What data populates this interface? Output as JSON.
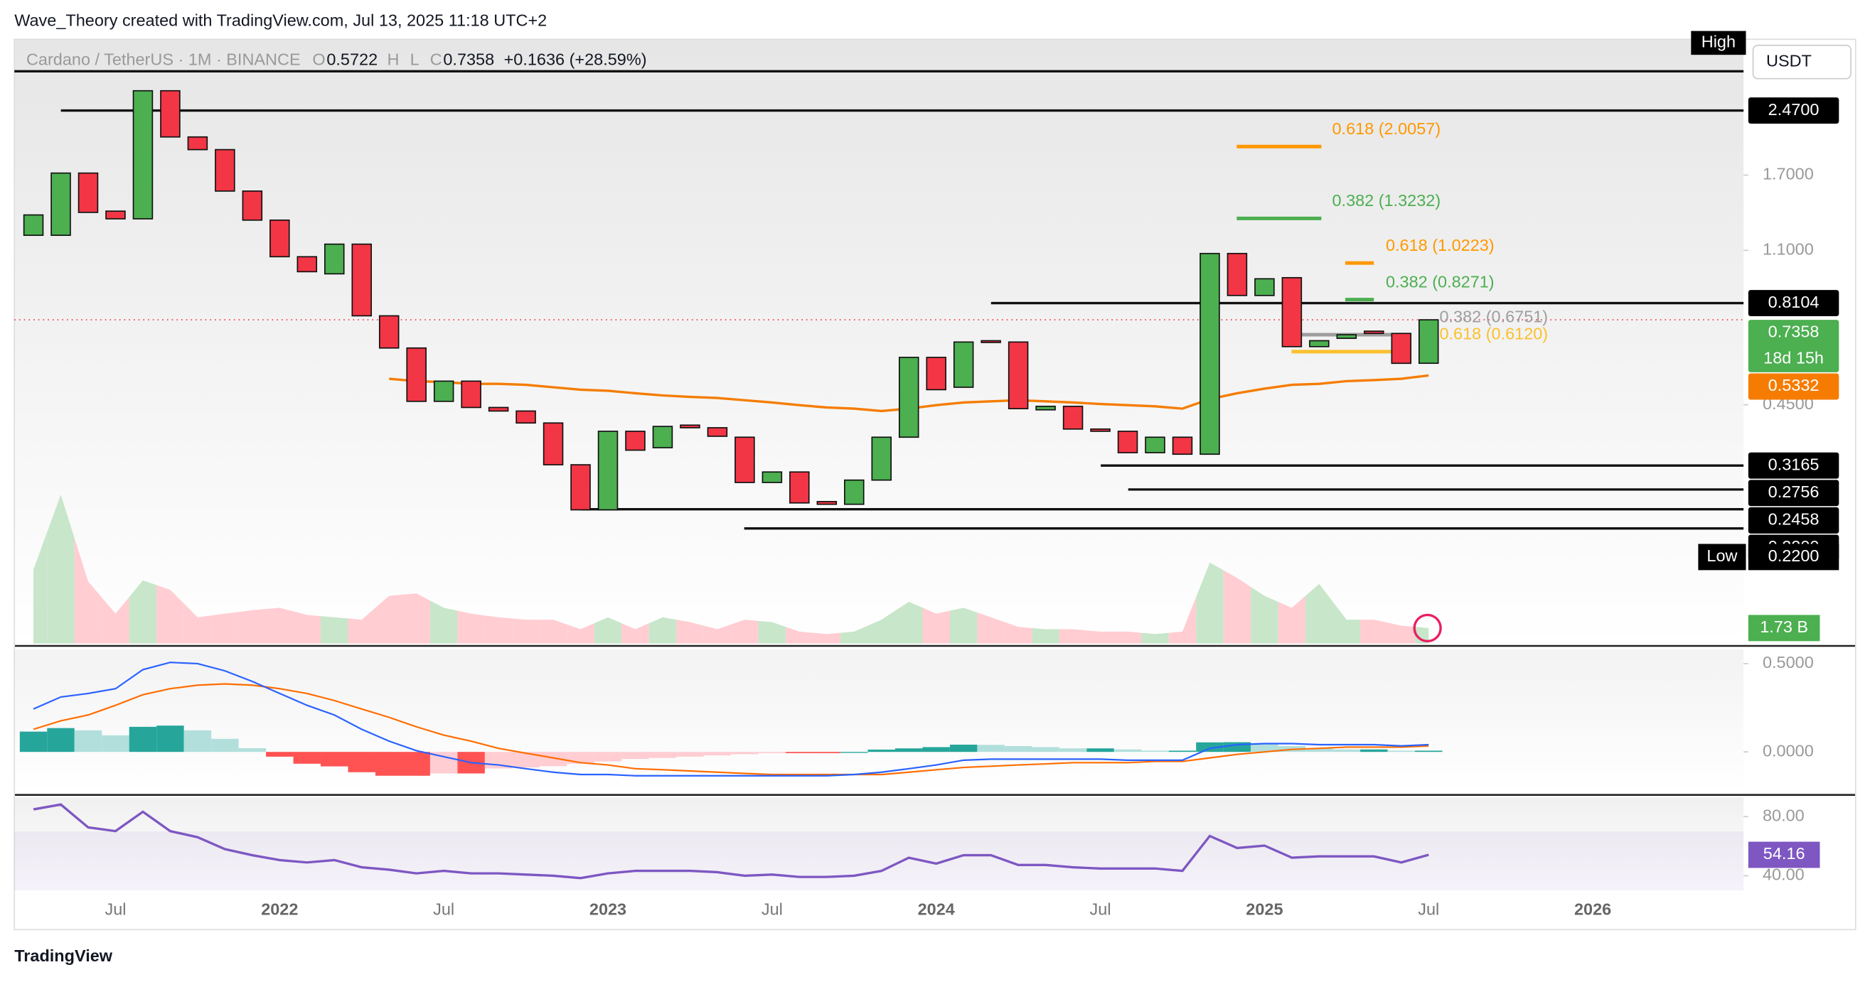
{
  "header": {
    "author": "Wave_Theory created with TradingView.com, Jul 13, 2025 11:18 UTC+2"
  },
  "footer": {
    "brand": "TradingView"
  },
  "chart_data": {
    "type": "candlestick",
    "symbol": "Cardano / TetherUS · 1M · BINANCE",
    "ohlc_labels": [
      "O",
      "H",
      "L",
      "C"
    ],
    "change": "+0.1636 (+28.59%)",
    "currency": "USDT",
    "countdown": "18d 15h",
    "log_scale": true,
    "ylim": [
      0.113,
      3.73
    ],
    "yticks": [
      {
        "value": 1.7,
        "label": "1.7000"
      },
      {
        "value": 1.1,
        "label": "1.1000"
      },
      {
        "value": 0.45,
        "label": "0.4500"
      }
    ],
    "up_color": "#4caf50",
    "down_color": "#f23645",
    "categories": [
      null,
      null,
      null,
      "Jul",
      null,
      null,
      null,
      null,
      null,
      "2022",
      null,
      null,
      null,
      null,
      null,
      "Jul",
      null,
      null,
      null,
      null,
      null,
      "2023",
      null,
      null,
      null,
      null,
      null,
      "Jul",
      null,
      null,
      null,
      null,
      null,
      "2024",
      null,
      null,
      null,
      null,
      null,
      "Jul",
      null,
      null,
      null,
      null,
      null,
      "2025",
      null,
      null,
      null,
      null,
      null,
      "Jul",
      null,
      null,
      null,
      null,
      null,
      "2026"
    ],
    "open": [
      1.2,
      1.2,
      1.72,
      1.38,
      1.32,
      2.77,
      2.12,
      1.97,
      1.55,
      1.31,
      1.06,
      0.96,
      1.14,
      0.753,
      0.625,
      0.459,
      0.516,
      0.443,
      0.434,
      0.405,
      0.318,
      0.245,
      0.386,
      0.351,
      0.4,
      0.394,
      0.373,
      0.287,
      0.305,
      0.257,
      0.253,
      0.291,
      0.373,
      0.592,
      0.498,
      0.652,
      0.647,
      0.437,
      0.446,
      0.391,
      0.386,
      0.341,
      0.373,
      0.338,
      1.08,
      0.847,
      0.939,
      0.63,
      0.661,
      0.689,
      0.68,
      0.5722,
      null,
      null,
      null,
      null,
      null,
      null
    ],
    "high": {
      "text": "High"
    },
    "low": {
      "text": "Low",
      "value": 0.22,
      "label": "0.2200"
    },
    "close": [
      1.35,
      1.72,
      1.37,
      1.32,
      2.77,
      2.12,
      1.97,
      1.55,
      1.31,
      1.06,
      0.972,
      1.14,
      0.753,
      0.625,
      0.459,
      0.516,
      0.443,
      0.434,
      0.405,
      0.318,
      0.245,
      0.386,
      0.346,
      0.397,
      0.394,
      0.375,
      0.287,
      0.305,
      0.255,
      0.253,
      0.291,
      0.373,
      0.592,
      0.491,
      0.647,
      0.647,
      0.44,
      0.446,
      0.391,
      0.386,
      0.341,
      0.373,
      0.338,
      1.08,
      0.847,
      0.933,
      0.63,
      0.652,
      0.675,
      0.68,
      0.572,
      0.7358,
      null,
      null,
      null,
      null,
      null,
      null
    ],
    "ema": {
      "color": "#f57c00",
      "values": [
        null,
        null,
        null,
        null,
        null,
        null,
        null,
        null,
        null,
        null,
        null,
        null,
        null,
        0.523,
        0.516,
        0.513,
        0.508,
        0.508,
        0.505,
        0.498,
        0.491,
        0.488,
        0.481,
        0.475,
        0.471,
        0.468,
        0.462,
        0.456,
        0.449,
        0.443,
        0.44,
        0.434,
        0.44,
        0.449,
        0.456,
        0.459,
        0.462,
        0.459,
        0.456,
        0.452,
        0.449,
        0.446,
        0.44,
        0.465,
        0.481,
        0.494,
        0.505,
        0.508,
        0.516,
        0.519,
        0.523,
        0.5332,
        null,
        null,
        null,
        null,
        null,
        null
      ]
    },
    "levels": [
      {
        "value": 3.1
      },
      {
        "value": 2.47,
        "label": "2.4700"
      },
      {
        "value": 0.8104
      },
      {
        "value": 0.3165
      },
      {
        "value": 0.2756
      },
      {
        "value": 0.2458
      },
      {
        "value": 0.22,
        "label": "0.2200"
      }
    ],
    "fibs": [
      {
        "label": "0.618 (2.0057)",
        "value": 2.0057,
        "color": "#ff9800"
      },
      {
        "label": "0.382 (1.3232)",
        "value": 1.3232,
        "color": "#4caf50"
      },
      {
        "label": "0.618 (1.0223)",
        "value": 1.0223,
        "color": "#ff9800"
      },
      {
        "label": "0.382 (0.8271)",
        "value": 0.8271,
        "color": "#4caf50"
      },
      {
        "label": "0.382 (0.6751)",
        "value": 0.6751,
        "color": "#9e9e9e"
      },
      {
        "label": "0.618 (0.6120)",
        "value": 0.612,
        "color": "#fbc02d"
      }
    ],
    "volume": {
      "ylim": [
        0,
        67.4
      ],
      "last_label": "1.73 B",
      "values": [
        8.25,
        16.6,
        6.92,
        3.33,
        7.05,
        5.99,
        2.93,
        3.33,
        3.72,
        3.99,
        3.19,
        2.93,
        2.66,
        5.32,
        5.59,
        3.99,
        3.33,
        2.93,
        2.66,
        2.66,
        1.6,
        2.93,
        1.6,
        2.93,
        2.39,
        1.6,
        2.66,
        2.39,
        1.33,
        1.06,
        1.33,
        2.66,
        4.66,
        3.33,
        3.99,
        2.93,
        1.86,
        1.6,
        1.6,
        1.33,
        1.33,
        1.06,
        1.33,
        9.04,
        7.32,
        5.32,
        3.99,
        6.65,
        2.66,
        2.66,
        2.0,
        1.73,
        null,
        null,
        null,
        null,
        null,
        null
      ]
    },
    "macd": {
      "ylim": [
        -0.23,
        0.58
      ],
      "yticks": [
        {
          "value": 0.5,
          "label": "0.5000"
        },
        {
          "value": 0,
          "label": "0.0000"
        }
      ],
      "macd": {
        "color": "#2962ff",
        "values": [
          0.243,
          0.311,
          0.331,
          0.358,
          0.466,
          0.507,
          0.5,
          0.459,
          0.399,
          0.331,
          0.264,
          0.209,
          0.128,
          0.061,
          0.007,
          -0.027,
          -0.061,
          -0.074,
          -0.095,
          -0.115,
          -0.128,
          -0.128,
          -0.135,
          -0.135,
          -0.135,
          -0.135,
          -0.135,
          -0.135,
          -0.135,
          -0.135,
          -0.128,
          -0.115,
          -0.095,
          -0.074,
          -0.047,
          -0.041,
          -0.041,
          -0.041,
          -0.041,
          -0.041,
          -0.047,
          -0.047,
          -0.047,
          0.02,
          0.041,
          0.047,
          0.047,
          0.041,
          0.041,
          0.041,
          0.034,
          0.041,
          null,
          null,
          null,
          null,
          null,
          null
        ]
      },
      "signal": {
        "color": "#ff6d00",
        "values": [
          0.128,
          0.176,
          0.209,
          0.264,
          0.324,
          0.358,
          0.378,
          0.385,
          0.378,
          0.358,
          0.331,
          0.291,
          0.243,
          0.196,
          0.142,
          0.095,
          0.061,
          0.02,
          -0.007,
          -0.034,
          -0.061,
          -0.074,
          -0.095,
          -0.101,
          -0.108,
          -0.115,
          -0.122,
          -0.128,
          -0.128,
          -0.128,
          -0.128,
          -0.128,
          -0.115,
          -0.101,
          -0.088,
          -0.081,
          -0.074,
          -0.068,
          -0.061,
          -0.061,
          -0.061,
          -0.054,
          -0.054,
          -0.034,
          -0.014,
          0,
          0.014,
          0.02,
          0.027,
          0.027,
          0.027,
          0.034,
          null,
          null,
          null,
          null,
          null,
          null
        ]
      },
      "histogram": {
        "values": [
          0.115,
          0.135,
          0.122,
          0.094,
          0.142,
          0.149,
          0.122,
          0.074,
          0.021,
          -0.027,
          -0.067,
          -0.082,
          -0.115,
          -0.135,
          -0.135,
          -0.122,
          -0.122,
          -0.094,
          -0.088,
          -0.081,
          -0.067,
          -0.054,
          -0.04,
          -0.034,
          -0.027,
          -0.02,
          -0.013,
          -0.007,
          -0.007,
          -0.007,
          0,
          0.013,
          0.02,
          0.027,
          0.041,
          0.04,
          0.033,
          0.027,
          0.02,
          0.02,
          0.014,
          0.007,
          0.007,
          0.054,
          0.055,
          0.047,
          0.033,
          0.021,
          0.014,
          0.014,
          0.007,
          0.007,
          null,
          null,
          null,
          null,
          null,
          null
        ]
      }
    },
    "rsi": {
      "ylim": [
        31.8,
        93.1
      ],
      "yticks": [
        {
          "value": 80,
          "label": "80.00"
        },
        {
          "value": 40,
          "label": "40.00"
        }
      ],
      "band": [
        30,
        70
      ],
      "color": "#7e57c2",
      "values": [
        84.9,
        88.2,
        72.7,
        70.2,
        83.3,
        70.2,
        66.1,
        58.0,
        53.9,
        50.6,
        49.0,
        50.6,
        45.7,
        44.1,
        41.6,
        43.3,
        41.6,
        41.6,
        40.8,
        40.0,
        38.4,
        41.6,
        43.3,
        43.3,
        43.3,
        42.4,
        40.0,
        40.8,
        39.2,
        39.2,
        40.0,
        43.3,
        52.2,
        48.2,
        53.9,
        53.9,
        47.3,
        47.3,
        45.7,
        44.9,
        44.9,
        44.9,
        43.3,
        66.9,
        58.8,
        60.4,
        52.2,
        53.1,
        53.1,
        53.1,
        49.0,
        54.16,
        null,
        null,
        null,
        null,
        null,
        null
      ]
    }
  }
}
